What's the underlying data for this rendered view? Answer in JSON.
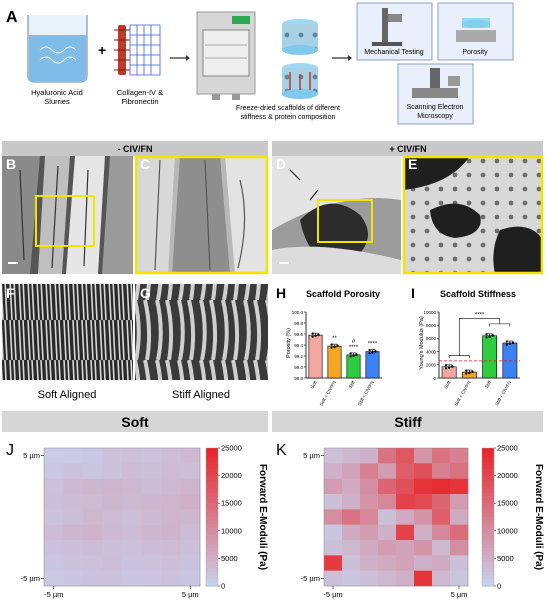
{
  "panel_letters": [
    "A",
    "B",
    "C",
    "D",
    "E",
    "F",
    "G",
    "H",
    "I",
    "J",
    "K"
  ],
  "schematic": {
    "ha_label": [
      "Hyaluronic Acid",
      "Slurries"
    ],
    "collagen_label": [
      "Collagen-IV &",
      "Fibronectin"
    ],
    "plus_sign": "+",
    "freeze_label": [
      "Freeze-dried scaffolds of different",
      "stiffness & protein composition"
    ],
    "mech_label": "Mechanical Testing",
    "porosity_label": "Porosity",
    "sem_label": [
      "Scanning Electron",
      "Microscopy"
    ]
  },
  "sem_headers": {
    "minus": "- CIV/FN",
    "plus": "+ CIV/FN"
  },
  "aligned_labels": {
    "soft": "Soft Aligned",
    "stiff": "Stiff Aligned"
  },
  "section_headers": {
    "soft": "Soft",
    "stiff": "Stiff"
  },
  "colors": {
    "pink": "#f4a7a0",
    "orange": "#f5a623",
    "green": "#2ecc40",
    "blue": "#3b82f6",
    "yellow": "#f2e600",
    "heat_low": "#c8d4f0",
    "heat_high": "#e8262a"
  },
  "chart_data": [
    {
      "type": "bar",
      "title": "Scaffold Porosity",
      "ylabel": "Porosity (%)",
      "categories": [
        "Soft",
        "Soft + CIV/FN",
        "Stiff",
        "Stiff + CIV/FN"
      ],
      "values": [
        99.58,
        99.38,
        99.22,
        99.28
      ],
      "ylim": [
        98.8,
        100.0
      ],
      "yticks": [
        "98.8",
        "99.0",
        "99.2",
        "99.4",
        "99.6",
        "99.8",
        "100.0"
      ],
      "significance": [
        "",
        "**",
        "#\n****",
        "****"
      ]
    },
    {
      "type": "bar",
      "title": "Scaffold Stiffness",
      "ylabel": "Young's Modulus (Pa)",
      "categories": [
        "Soft",
        "Soft + CIV/FN",
        "Stiff",
        "Stiff + CIV/FN"
      ],
      "values": [
        1700,
        900,
        6400,
        5300
      ],
      "ylim": [
        0,
        10000
      ],
      "yticks": [
        "0",
        "2000",
        "4000",
        "6000",
        "8000",
        "10000"
      ],
      "significance": "****"
    },
    {
      "type": "heatmap",
      "name": "Soft",
      "xlabels": [
        "-5 µm",
        "5 µm"
      ],
      "ylabels": [
        "5 µm",
        "-5 µm"
      ],
      "colorbar_label": "Forward E-Moduli (Pa)",
      "colorbar_ticks": [
        "25000",
        "20000",
        "15000",
        "10000",
        "5000",
        "0"
      ],
      "vmin": 0,
      "vmax": 25000,
      "values": [
        [
          1200,
          1500,
          1800,
          2400,
          3000,
          2600,
          3200,
          3800
        ],
        [
          1800,
          2400,
          2000,
          2600,
          3400,
          3000,
          3600,
          3200
        ],
        [
          2800,
          3800,
          4200,
          4400,
          4000,
          3400,
          3800,
          4600
        ],
        [
          3000,
          3400,
          3600,
          4200,
          3800,
          4200,
          4600,
          5200
        ],
        [
          2600,
          3200,
          4000,
          3600,
          3200,
          3800,
          4400,
          4200
        ],
        [
          3400,
          4200,
          4800,
          3800,
          3400,
          4200,
          4800,
          3400
        ],
        [
          2400,
          3000,
          3400,
          3000,
          2800,
          3400,
          3600,
          3000
        ],
        [
          2000,
          2600,
          2800,
          3200,
          2400,
          2600,
          3000,
          2400
        ],
        [
          1600,
          2000,
          2400,
          2600,
          2000,
          2200,
          2600,
          2000
        ]
      ]
    },
    {
      "type": "heatmap",
      "name": "Stiff",
      "xlabels": [
        "-5 µm",
        "5 µm"
      ],
      "ylabels": [
        "5 µm",
        "-5 µm"
      ],
      "colorbar_label": "Forward E-Moduli (Pa)",
      "colorbar_ticks": [
        "25000",
        "20000",
        "15000",
        "10000",
        "5000",
        "0"
      ],
      "vmin": 0,
      "vmax": 25000,
      "values": [
        [
          3000,
          4000,
          5000,
          14000,
          18000,
          9000,
          14000,
          12000
        ],
        [
          5000,
          7000,
          12000,
          8000,
          17000,
          19000,
          12000,
          14000
        ],
        [
          8000,
          6000,
          10000,
          16000,
          19000,
          23000,
          24000,
          23000
        ],
        [
          3000,
          5000,
          9000,
          11000,
          21000,
          20000,
          16000,
          8000
        ],
        [
          10000,
          14000,
          11000,
          3000,
          6000,
          9000,
          17000,
          6000
        ],
        [
          2000,
          6000,
          8000,
          5000,
          21000,
          5000,
          11000,
          15000
        ],
        [
          3000,
          4000,
          6000,
          8000,
          7000,
          9000,
          4000,
          10000
        ],
        [
          22000,
          3000,
          5000,
          6000,
          7000,
          5000,
          6000,
          3000
        ],
        [
          3000,
          2000,
          3000,
          4000,
          5000,
          23000,
          4000,
          2000
        ]
      ]
    }
  ]
}
